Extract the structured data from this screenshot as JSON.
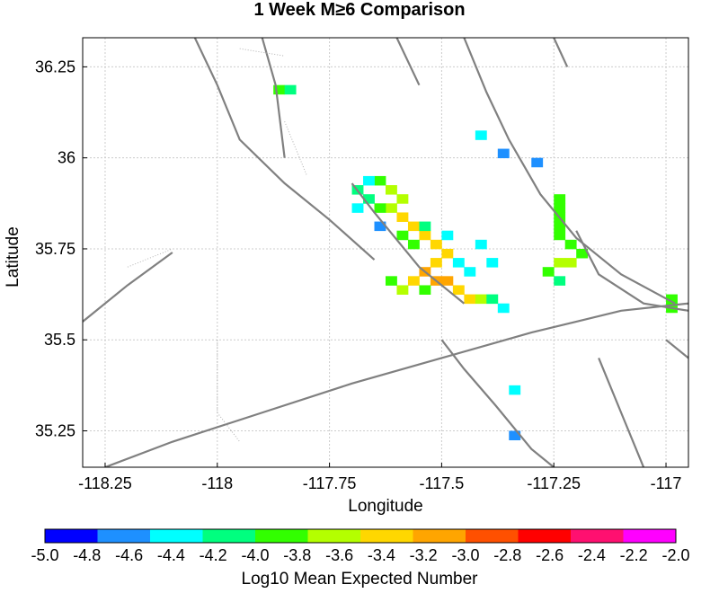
{
  "chart_data": {
    "type": "heatmap",
    "title": "1 Week M≥6 Comparison",
    "xlabel": "Longitude",
    "ylabel": "Latitude",
    "xlim": [
      -118.3,
      -116.95
    ],
    "ylim": [
      35.15,
      36.33
    ],
    "xticks": [
      -118.25,
      -118,
      -117.75,
      -117.5,
      -117.25,
      -117
    ],
    "xtick_labels": [
      "-118.25",
      "-118",
      "-117.75",
      "-117.5",
      "-117.25",
      "-117"
    ],
    "yticks": [
      35.25,
      35.5,
      35.75,
      36,
      36.25
    ],
    "ytick_labels": [
      "35.25",
      "35.5",
      "35.75",
      "36",
      "36.25"
    ],
    "grid": true,
    "colorbar": {
      "label": "Log10 Mean Expected Number",
      "ticks": [
        "-5.0",
        "-4.8",
        "-4.6",
        "-4.4",
        "-4.2",
        "-4.0",
        "-3.8",
        "-3.6",
        "-3.4",
        "-3.2",
        "-3.0",
        "-2.8",
        "-2.6",
        "-2.4",
        "-2.2",
        "-2.0"
      ],
      "colors": [
        "#0000ff",
        "#1e90ff",
        "#00ffff",
        "#00ff7f",
        "#32ff00",
        "#b4ff00",
        "#ffd700",
        "#ffa500",
        "#ff5000",
        "#ff0000",
        "#ff1070",
        "#ff00ff"
      ],
      "min": -5.0,
      "max": -2.0
    },
    "cell_size_deg": 0.025,
    "cells": [
      [
        -117.65,
        35.925,
        -3.85
      ],
      [
        -117.625,
        35.9,
        -3.7
      ],
      [
        -117.6,
        35.875,
        -3.65
      ],
      [
        -117.625,
        35.85,
        -3.55
      ],
      [
        -117.6,
        35.825,
        -3.5
      ],
      [
        -117.575,
        35.8,
        -3.45
      ],
      [
        -117.55,
        35.775,
        -3.35
      ],
      [
        -117.525,
        35.75,
        -3.4
      ],
      [
        -117.5,
        35.725,
        -3.45
      ],
      [
        -117.525,
        35.7,
        -3.3
      ],
      [
        -117.55,
        35.675,
        -3.2
      ],
      [
        -117.525,
        35.65,
        -3.1
      ],
      [
        -117.5,
        35.65,
        -3.15
      ],
      [
        -117.475,
        35.625,
        -3.3
      ],
      [
        -117.45,
        35.6,
        -3.5
      ],
      [
        -117.425,
        35.6,
        -3.6
      ],
      [
        -117.575,
        35.65,
        -3.4
      ],
      [
        -117.6,
        35.625,
        -3.7
      ],
      [
        -117.625,
        35.65,
        -3.9
      ],
      [
        -117.55,
        35.625,
        -3.95
      ],
      [
        -117.575,
        35.75,
        -3.8
      ],
      [
        -117.6,
        35.775,
        -3.9
      ],
      [
        -117.65,
        35.85,
        -4.0
      ],
      [
        -117.675,
        35.875,
        -4.1
      ],
      [
        -117.7,
        35.9,
        -4.2
      ],
      [
        -117.675,
        35.925,
        -4.3
      ],
      [
        -117.55,
        35.8,
        -4.2
      ],
      [
        -117.5,
        35.775,
        -4.4
      ],
      [
        -117.475,
        35.7,
        -4.3
      ],
      [
        -117.45,
        35.675,
        -4.4
      ],
      [
        -117.4,
        35.6,
        -4.2
      ],
      [
        -117.375,
        35.575,
        -4.5
      ],
      [
        -117.25,
        35.875,
        -4.0
      ],
      [
        -117.25,
        35.85,
        -3.95
      ],
      [
        -117.25,
        35.825,
        -3.9
      ],
      [
        -117.25,
        35.8,
        -3.95
      ],
      [
        -117.25,
        35.775,
        -4.0
      ],
      [
        -117.225,
        35.75,
        -3.9
      ],
      [
        -117.2,
        35.725,
        -3.85
      ],
      [
        -117.225,
        35.7,
        -3.7
      ],
      [
        -117.25,
        35.7,
        -3.75
      ],
      [
        -117.275,
        35.675,
        -4.0
      ],
      [
        -117.25,
        35.65,
        -4.2
      ],
      [
        -117.875,
        36.175,
        -3.95
      ],
      [
        -117.85,
        36.175,
        -4.1
      ],
      [
        -117.0,
        35.6,
        -3.9
      ],
      [
        -117.0,
        35.575,
        -4.0
      ],
      [
        -117.7,
        35.85,
        -4.5
      ],
      [
        -117.65,
        35.8,
        -4.6
      ],
      [
        -117.425,
        35.75,
        -4.5
      ],
      [
        -117.4,
        35.7,
        -4.45
      ],
      [
        -117.425,
        36.05,
        -4.5
      ],
      [
        -117.375,
        36.0,
        -4.6
      ],
      [
        -117.3,
        35.975,
        -4.55
      ],
      [
        -117.35,
        35.35,
        -4.5
      ],
      [
        -117.35,
        35.225,
        -4.6
      ]
    ]
  }
}
